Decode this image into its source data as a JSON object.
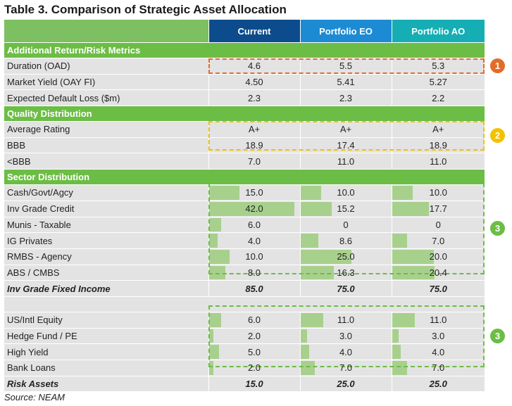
{
  "title": "Table 3. Comparison of Strategic Asset Allocation",
  "columns": [
    "",
    "Current",
    "Portfolio EO",
    "Portfolio AO"
  ],
  "sections": {
    "metrics": {
      "label": "Additional Return/Risk Metrics",
      "rows": [
        {
          "label": "Duration (OAD)",
          "values": [
            "4.6",
            "5.5",
            "5.3"
          ]
        },
        {
          "label": "Market Yield (OAY FI)",
          "values": [
            "4.50",
            "5.41",
            "5.27"
          ]
        },
        {
          "label": "Expected Default Loss ($m)",
          "values": [
            "2.3",
            "2.3",
            "2.2"
          ]
        }
      ]
    },
    "quality": {
      "label": "Quality Distribution",
      "rows": [
        {
          "label": "Average Rating",
          "values": [
            "A+",
            "A+",
            "A+"
          ]
        },
        {
          "label": "BBB",
          "values": [
            "18.9",
            "17.4",
            "18.9"
          ]
        },
        {
          "label": "<BBB",
          "values": [
            "7.0",
            "11.0",
            "11.0"
          ]
        }
      ]
    },
    "sector": {
      "label": "Sector Distribution",
      "rows": [
        {
          "label": "Cash/Govt/Agcy",
          "values": [
            "15.0",
            "10.0",
            "10.0"
          ],
          "levels": [
            15.0,
            10.0,
            10.0
          ]
        },
        {
          "label": "Inv Grade Credit",
          "values": [
            "42.0",
            "15.2",
            "17.7"
          ],
          "levels": [
            42.0,
            15.2,
            17.7
          ]
        },
        {
          "label": "Munis - Taxable",
          "values": [
            "6.0",
            "0",
            "0"
          ],
          "levels": [
            6.0,
            0,
            0
          ]
        },
        {
          "label": "IG Privates",
          "values": [
            "4.0",
            "8.6",
            "7.0"
          ],
          "levels": [
            4.0,
            8.6,
            7.0
          ]
        },
        {
          "label": "RMBS - Agency",
          "values": [
            "10.0",
            "25.0",
            "20.0"
          ],
          "levels": [
            10.0,
            25.0,
            20.0
          ]
        },
        {
          "label": "ABS / CMBS",
          "values": [
            "8.0",
            "16.3",
            "20.4"
          ],
          "levels": [
            8.0,
            16.3,
            20.4
          ]
        }
      ],
      "total": {
        "label": "Inv Grade Fixed Income",
        "values": [
          "85.0",
          "75.0",
          "75.0"
        ]
      }
    },
    "risk": {
      "rows": [
        {
          "label": "US/Intl Equity",
          "values": [
            "6.0",
            "11.0",
            "11.0"
          ],
          "levels": [
            6.0,
            11.0,
            11.0
          ]
        },
        {
          "label": "Hedge Fund / PE",
          "values": [
            "2.0",
            "3.0",
            "3.0"
          ],
          "levels": [
            2.0,
            3.0,
            3.0
          ]
        },
        {
          "label": "High Yield",
          "values": [
            "5.0",
            "4.0",
            "4.0"
          ],
          "levels": [
            5.0,
            4.0,
            4.0
          ]
        },
        {
          "label": "Bank Loans",
          "values": [
            "2.0",
            "7.0",
            "7.0"
          ],
          "levels": [
            2.0,
            7.0,
            7.0
          ]
        }
      ],
      "total": {
        "label": "Risk Assets",
        "values": [
          "15.0",
          "25.0",
          "25.0"
        ]
      }
    }
  },
  "bar_scale_max": 45,
  "badges": [
    "1",
    "2",
    "3",
    "3"
  ],
  "source": "Source: NEAM",
  "colors": {
    "current": "#0c4c8c",
    "eo": "#1d8bd3",
    "ao": "#15aeb5",
    "section": "#6cbd45",
    "bar": "#a8d08d",
    "badge1": "#e46c2a",
    "badge2": "#f3c100",
    "badge3": "#6cbd45"
  }
}
